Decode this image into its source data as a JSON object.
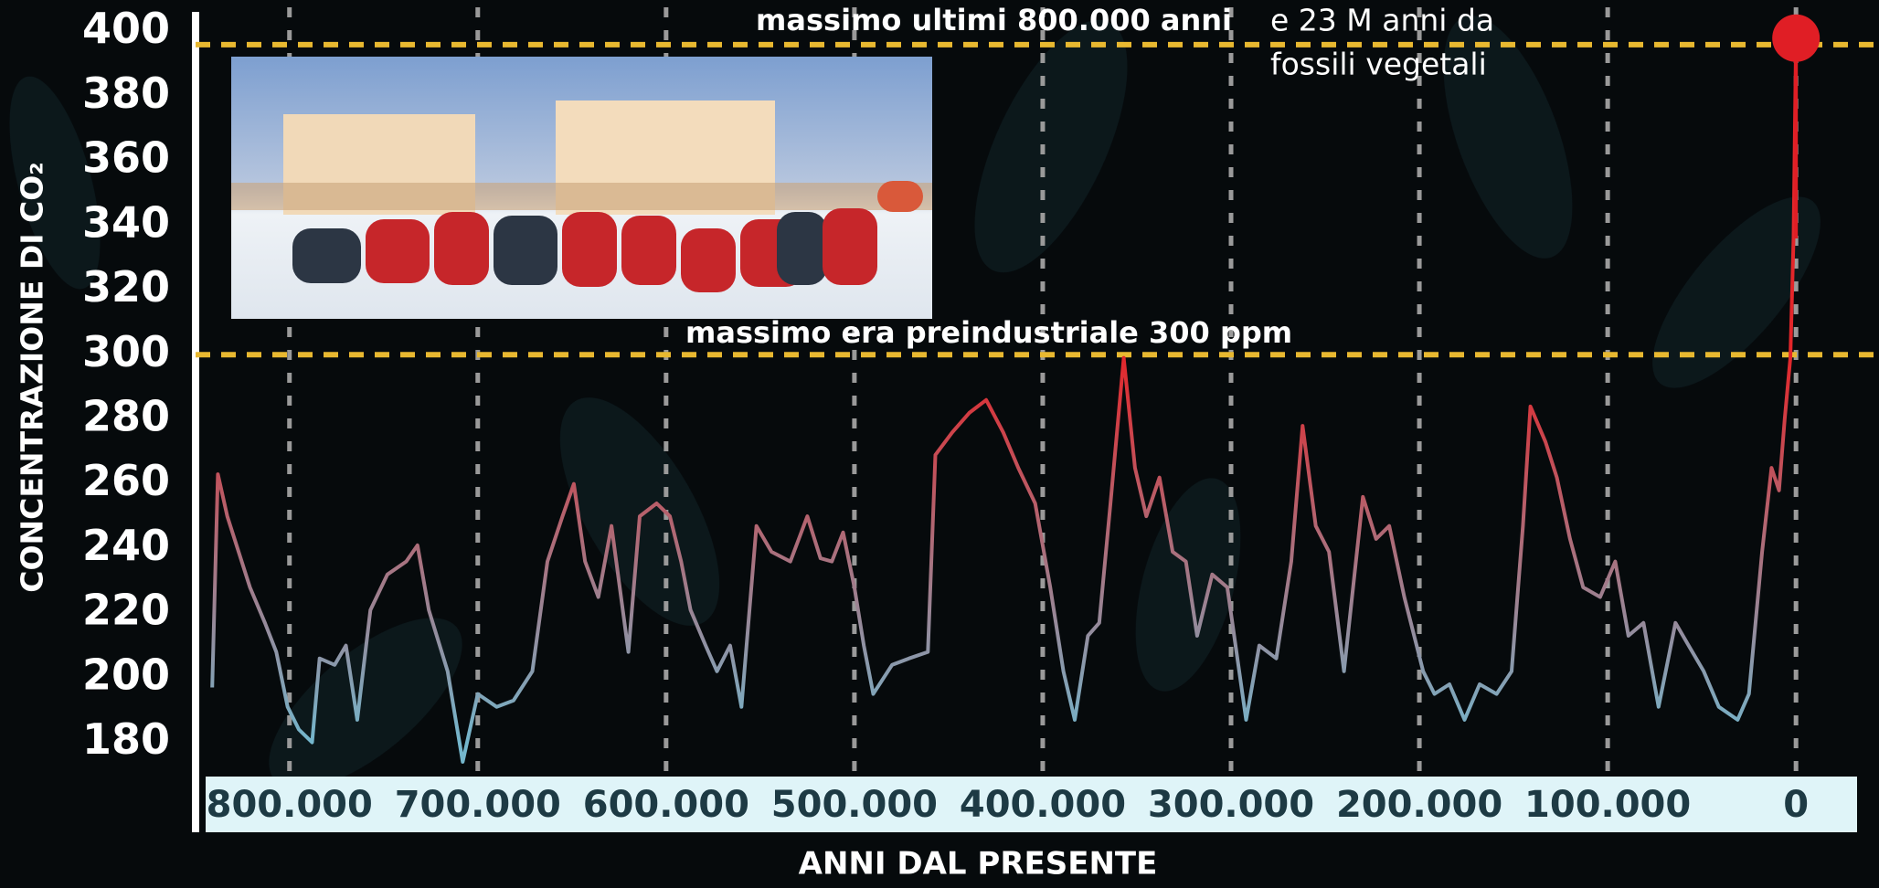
{
  "chart_data": {
    "type": "line",
    "ylabel": "CONCENTRAZIONE DI CO₂",
    "xlabel": "ANNI DAL PRESENTE",
    "xlim": [
      845000,
      -30000
    ],
    "ylim": [
      170,
      405
    ],
    "xticks": [
      {
        "value": 800000,
        "label": "800.000"
      },
      {
        "value": 700000,
        "label": "700.000"
      },
      {
        "value": 600000,
        "label": "600.000"
      },
      {
        "value": 500000,
        "label": "500.000"
      },
      {
        "value": 400000,
        "label": "400.000"
      },
      {
        "value": 300000,
        "label": "300.000"
      },
      {
        "value": 200000,
        "label": "200.000"
      },
      {
        "value": 100000,
        "label": "100.000"
      },
      0
    ],
    "yticks": [
      180,
      200,
      220,
      240,
      260,
      280,
      300,
      320,
      340,
      360,
      380,
      400
    ],
    "grid": true,
    "line_colors": [
      "#74b6cc",
      "#e3262a"
    ],
    "marker_color": "#e01e25",
    "reference_color": "#e8b830",
    "reference_lines": [
      {
        "value": 396,
        "label": "massimo ultimi 800.000 anni"
      },
      {
        "value": 300,
        "label": "massimo era preindustriale 300 ppm"
      }
    ],
    "annotation": [
      "e 23 M anni da",
      "fossili vegetali"
    ],
    "x": [
      841000,
      838000,
      833000,
      827000,
      821000,
      813000,
      807000,
      801000,
      795000,
      788000,
      784000,
      776000,
      770000,
      764000,
      757000,
      748000,
      738000,
      732000,
      726000,
      716000,
      708000,
      700000,
      690000,
      681000,
      671000,
      663000,
      655000,
      649000,
      643000,
      636000,
      629000,
      620000,
      614000,
      605000,
      598000,
      592000,
      587000,
      579000,
      573000,
      566000,
      560000,
      552000,
      544000,
      534000,
      525000,
      518000,
      512000,
      506000,
      500000,
      495000,
      490000,
      480000,
      471000,
      461000,
      457000,
      448000,
      439000,
      430000,
      421000,
      413000,
      404000,
      396000,
      389000,
      383000,
      376000,
      370000,
      364000,
      357000,
      351000,
      345000,
      338000,
      331000,
      324000,
      318000,
      310000,
      302000,
      292000,
      285000,
      276000,
      268000,
      262000,
      255000,
      248000,
      240000,
      230000,
      223000,
      216000,
      208000,
      198000,
      192000,
      184000,
      176000,
      168000,
      159000,
      151000,
      145000,
      141000,
      133000,
      127000,
      120000,
      113000,
      104000,
      96000,
      89000,
      81000,
      73000,
      64000,
      57000,
      49000,
      41000,
      31000,
      25000,
      18000,
      13000,
      9000,
      6000,
      3000,
      1300,
      0
    ],
    "values": [
      197,
      263,
      250,
      239,
      228,
      217,
      208,
      191,
      184,
      180,
      206,
      204,
      210,
      187,
      221,
      232,
      236,
      241,
      221,
      202,
      174,
      195,
      191,
      193,
      202,
      236,
      250,
      260,
      236,
      225,
      247,
      208,
      250,
      254,
      250,
      236,
      221,
      210,
      202,
      210,
      191,
      247,
      239,
      236,
      250,
      237,
      236,
      245,
      228,
      210,
      195,
      204,
      206,
      208,
      269,
      276,
      282,
      286,
      276,
      265,
      254,
      228,
      202,
      187,
      213,
      217,
      254,
      299,
      265,
      250,
      262,
      239,
      236,
      213,
      232,
      228,
      187,
      210,
      206,
      236,
      278,
      247,
      239,
      202,
      256,
      243,
      247,
      225,
      202,
      195,
      198,
      187,
      198,
      195,
      202,
      247,
      284,
      273,
      262,
      243,
      228,
      225,
      236,
      213,
      217,
      191,
      217,
      210,
      202,
      191,
      187,
      195,
      239,
      265,
      258,
      280,
      299,
      336,
      398
    ]
  }
}
